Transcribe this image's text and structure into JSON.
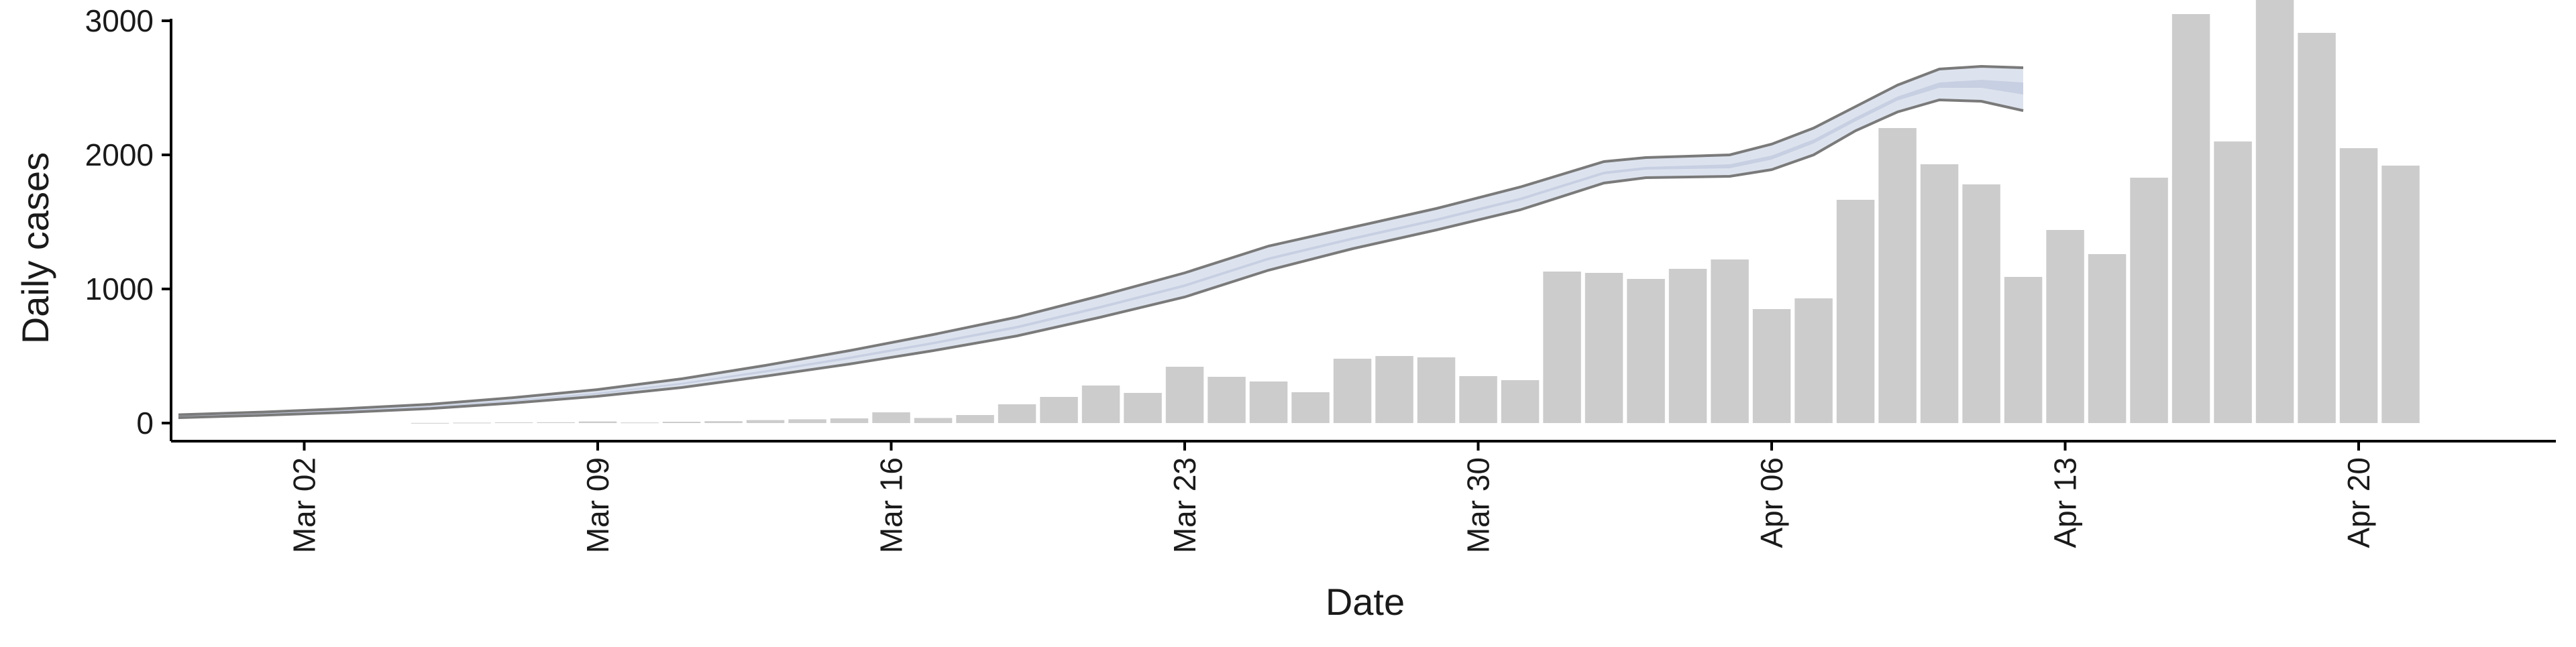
{
  "chart_data": {
    "type": "bar",
    "xlabel": "Date",
    "ylabel": "Daily cases",
    "ylim": [
      -150,
      3400
    ],
    "y_ticks": [
      0,
      1000,
      2000,
      3000
    ],
    "x_tick_labels": [
      "Mar 02",
      "Mar 09",
      "Mar 16",
      "Mar 23",
      "Mar 30",
      "Apr 06",
      "Apr 13",
      "Apr 20"
    ],
    "x_tick_dates": [
      "2020-03-02",
      "2020-03-09",
      "2020-03-16",
      "2020-03-23",
      "2020-03-30",
      "2020-04-06",
      "2020-04-13",
      "2020-04-20"
    ],
    "x_range": [
      "2020-02-25",
      "2020-04-25"
    ],
    "grid": false,
    "colors": {
      "bars": "#cccccc",
      "ribbon": "#dde3ee",
      "ribbon_center": "#c7cfe2",
      "bound_lines": "#7a7a7a",
      "axis": "#000000"
    },
    "bars": {
      "name": "Daily cases",
      "x": [
        "2020-03-05",
        "2020-03-06",
        "2020-03-07",
        "2020-03-08",
        "2020-03-09",
        "2020-03-10",
        "2020-03-11",
        "2020-03-12",
        "2020-03-13",
        "2020-03-14",
        "2020-03-15",
        "2020-03-16",
        "2020-03-17",
        "2020-03-18",
        "2020-03-19",
        "2020-03-20",
        "2020-03-21",
        "2020-03-22",
        "2020-03-23",
        "2020-03-24",
        "2020-03-25",
        "2020-03-26",
        "2020-03-27",
        "2020-03-28",
        "2020-03-29",
        "2020-03-30",
        "2020-03-31",
        "2020-04-01",
        "2020-04-02",
        "2020-04-03",
        "2020-04-04",
        "2020-04-05",
        "2020-04-06",
        "2020-04-07",
        "2020-04-08",
        "2020-04-09",
        "2020-04-10",
        "2020-04-11",
        "2020-04-12",
        "2020-04-13",
        "2020-04-14",
        "2020-04-15",
        "2020-04-16",
        "2020-04-17",
        "2020-04-18",
        "2020-04-19",
        "2020-04-20",
        "2020-04-21"
      ],
      "values": [
        1,
        3,
        5,
        6,
        12,
        4,
        10,
        14,
        22,
        28,
        35,
        80,
        38,
        60,
        140,
        195,
        280,
        225,
        420,
        345,
        310,
        230,
        480,
        500,
        490,
        350,
        320,
        1130,
        1120,
        1075,
        1150,
        1220,
        850,
        930,
        1665,
        2200,
        1930,
        1780,
        1090,
        1440,
        1260,
        1830,
        3050,
        2100,
        3250,
        2910,
        2050,
        1920
      ]
    },
    "estimate": {
      "x": [
        "2020-02-28",
        "2020-03-01",
        "2020-03-03",
        "2020-03-05",
        "2020-03-07",
        "2020-03-09",
        "2020-03-11",
        "2020-03-13",
        "2020-03-15",
        "2020-03-17",
        "2020-03-19",
        "2020-03-21",
        "2020-03-23",
        "2020-03-25",
        "2020-03-27",
        "2020-03-29",
        "2020-03-31",
        "2020-04-02",
        "2020-04-03",
        "2020-04-05",
        "2020-04-06",
        "2020-04-07",
        "2020-04-08",
        "2020-04-09",
        "2020-04-10",
        "2020-04-11",
        "2020-04-12"
      ],
      "upper": [
        62,
        82,
        108,
        140,
        190,
        250,
        330,
        430,
        540,
        660,
        790,
        950,
        1120,
        1320,
        1460,
        1600,
        1760,
        1950,
        1980,
        2000,
        2080,
        2200,
        2360,
        2520,
        2640,
        2660,
        2650
      ],
      "lower": [
        40,
        58,
        80,
        108,
        150,
        200,
        265,
        350,
        440,
        540,
        650,
        790,
        940,
        1140,
        1300,
        1440,
        1590,
        1790,
        1830,
        1840,
        1890,
        2000,
        2180,
        2320,
        2410,
        2400,
        2330
      ],
      "inner_upper": [
        55,
        73,
        97,
        126,
        172,
        227,
        300,
        393,
        495,
        605,
        725,
        875,
        1035,
        1235,
        1385,
        1525,
        1680,
        1875,
        1910,
        1930,
        1995,
        2115,
        2280,
        2435,
        2540,
        2560,
        2540
      ],
      "inner_lower": [
        47,
        65,
        89,
        118,
        162,
        214,
        287,
        377,
        477,
        587,
        705,
        855,
        1015,
        1215,
        1365,
        1505,
        1660,
        1855,
        1890,
        1900,
        1965,
        2085,
        2250,
        2405,
        2500,
        2500,
        2450
      ],
      "center": [
        51,
        70,
        94,
        122,
        168,
        222,
        295,
        388,
        490,
        600,
        720,
        870,
        1030,
        1230,
        1380,
        1520,
        1675,
        1870,
        1905,
        1920,
        1985,
        2100,
        2265,
        2420,
        2520,
        2530,
        2495
      ]
    }
  }
}
